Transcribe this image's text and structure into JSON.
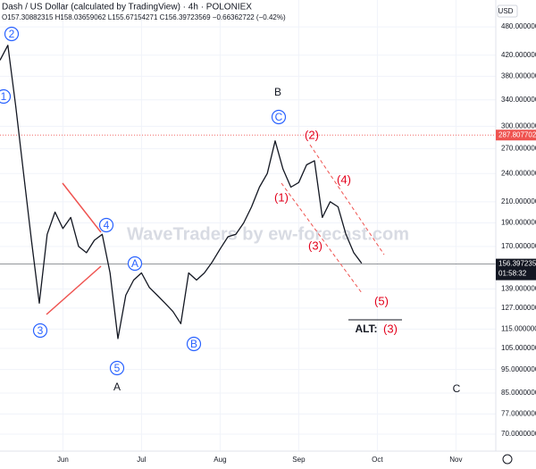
{
  "chart_data": {
    "type": "line",
    "header": "Dash / US Dollar (calculated by TradingView) · 4h · POLONIEX",
    "ohlc": "O157.30882315 H158.03659062 L155.67154271 C156.39723569 −0.66362722 (−0.42%)",
    "currency": "USD",
    "watermark": "WaveTraders by ew-forecast.com",
    "categories": [
      null,
      null,
      null,
      null,
      null,
      null,
      null,
      null,
      "Jun",
      null,
      null,
      null,
      null,
      null,
      null,
      null,
      null,
      null,
      "Jul",
      null,
      null,
      null,
      null,
      null,
      null,
      null,
      null,
      null,
      "Aug",
      null,
      null,
      null,
      null,
      null,
      null,
      null,
      null,
      null,
      "Sep",
      null,
      null,
      null,
      null,
      null,
      null,
      null,
      null,
      null,
      "Oct",
      null,
      null,
      null,
      null,
      null,
      null,
      null,
      null,
      null,
      "Nov",
      null,
      null,
      null,
      null
    ],
    "series": [
      {
        "name": "DASHUSD",
        "color": "#131722",
        "values": [
          410,
          440,
          330,
          240,
          175,
          130,
          180,
          200,
          185,
          195,
          170,
          165,
          175,
          180,
          150,
          110,
          135,
          145,
          150,
          140,
          135,
          130,
          125,
          118,
          150,
          145,
          150,
          158,
          168,
          178,
          180,
          190,
          205,
          225,
          240,
          280,
          245,
          225,
          230,
          250,
          255,
          195,
          210,
          205,
          180,
          165,
          157,
          null,
          null,
          null,
          null,
          null,
          null,
          null,
          null,
          null,
          null,
          null,
          null,
          null,
          null,
          null,
          null
        ]
      }
    ],
    "log_scale": true,
    "ylim": [
      64.6,
      545
    ],
    "yticks": [
      {
        "value": 480,
        "label": "480.00000000"
      },
      {
        "value": 420,
        "label": "420.00000000"
      },
      {
        "value": 380,
        "label": "380.00000000"
      },
      {
        "value": 340,
        "label": "340.00000000"
      },
      {
        "value": 300,
        "label": "300.00000000"
      },
      {
        "value": 270,
        "label": "270.00000000"
      },
      {
        "value": 240,
        "label": "240.00000000"
      },
      {
        "value": 210,
        "label": "210.00000000"
      },
      {
        "value": 190,
        "label": "190.00000000"
      },
      {
        "value": 170,
        "label": "170.00000000"
      },
      {
        "value": 139,
        "label": "139.00000000"
      },
      {
        "value": 127,
        "label": "127.00000000"
      },
      {
        "value": 115,
        "label": "115.00000000"
      },
      {
        "value": 105,
        "label": "105.00000000"
      },
      {
        "value": 95,
        "label": "95.00000000"
      },
      {
        "value": 85,
        "label": "85.00000000"
      },
      {
        "value": 77,
        "label": "77.00000000"
      },
      {
        "value": 70,
        "label": "70.00000000"
      }
    ],
    "grid": true,
    "price_lines": [
      {
        "value": 287.80770226,
        "color": "#ef5350"
      },
      {
        "value": 156.39723569,
        "color": "#131722"
      }
    ],
    "countdown": "01:58:32",
    "annotations": [
      "2",
      "1",
      "3",
      "4",
      "5",
      "A",
      "A",
      "B",
      "B",
      "C",
      "(2)",
      "(1)",
      "(4)",
      "(3)",
      "(5)",
      "ALT:",
      "(3)",
      "C"
    ]
  }
}
